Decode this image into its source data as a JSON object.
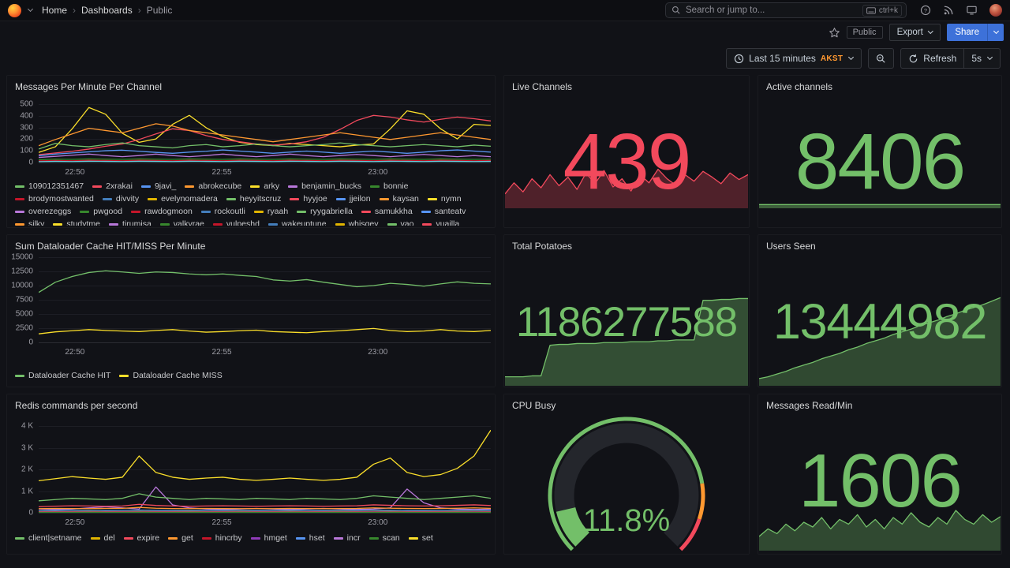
{
  "nav": {
    "breadcrumb": {
      "home": "Home",
      "dashboards": "Dashboards",
      "public": "Public"
    },
    "search_placeholder": "Search or jump to...",
    "shortcut": "ctrl+k",
    "icons": [
      "help-icon",
      "rss-icon",
      "monitor-icon",
      "user-avatar"
    ]
  },
  "toolbar": {
    "tag": "Public",
    "export_label": "Export",
    "share_label": "Share"
  },
  "controls": {
    "time_range": "Last 15 minutes",
    "timezone": "AKST",
    "refresh_label": "Refresh",
    "interval": "5s"
  },
  "panels": {
    "messages": {
      "title": "Messages Per Minute Per Channel"
    },
    "live_channels": {
      "title": "Live Channels",
      "value": "439",
      "color": "#F2495C"
    },
    "active_channels": {
      "title": "Active channels",
      "value": "8406",
      "color": "#73BF69"
    },
    "dataloader": {
      "title": "Sum Dataloader Cache HIT/MISS Per Minute"
    },
    "total_potatoes": {
      "title": "Total Potatoes",
      "value": "1186277588",
      "color": "#73BF69"
    },
    "users_seen": {
      "title": "Users Seen",
      "value": "13444982",
      "color": "#73BF69"
    },
    "redis": {
      "title": "Redis commands per second"
    },
    "cpu_busy": {
      "title": "CPU Busy",
      "value": "11.8%",
      "color": "#73BF69"
    },
    "messages_read": {
      "title": "Messages Read/Min",
      "value": "1606",
      "color": "#73BF69"
    }
  },
  "charts": {
    "messages": {
      "ymax": 520,
      "y_ticks": [
        "500",
        "400",
        "300",
        "200",
        "100",
        "0"
      ],
      "x_ticks": [
        {
          "label": "22:50",
          "pos": 0.08
        },
        {
          "label": "22:55",
          "pos": 0.405
        },
        {
          "label": "23:00",
          "pos": 0.75
        }
      ],
      "palette": [
        "#73BF69",
        "#F2495C",
        "#5794F2",
        "#FF9830",
        "#FADE2A",
        "#B877D9",
        "#37872D",
        "#C4162A",
        "#447EBC",
        "#E0B400"
      ],
      "legend": [
        "109012351467",
        "2xrakai",
        "9javi_",
        "abrokecube",
        "arky",
        "benjamin_bucks",
        "bonnie",
        "brodymostwanted",
        "divvity",
        "evelynomadera",
        "heyyitscruz",
        "hyyjoe",
        "jjeilon",
        "kaysan",
        "nymn",
        "overezeggs",
        "pwgood",
        "rawdogmoon",
        "rockoutli",
        "ryaah",
        "ryygabriella",
        "samukkha",
        "santeatv",
        "silky",
        "studytme",
        "tirumisa",
        "valkyrae",
        "vulpeshd",
        "wakeuptune",
        "whisqey",
        "vao",
        "vuailla"
      ],
      "series": [
        {
          "color": "#FADE2A",
          "values": [
            90,
            140,
            300,
            490,
            430,
            260,
            180,
            210,
            340,
            420,
            310,
            230,
            180,
            160,
            150,
            170,
            160,
            150,
            140,
            155,
            165,
            300,
            460,
            430,
            300,
            210,
            340,
            330
          ]
        },
        {
          "color": "#F2495C",
          "values": [
            70,
            85,
            100,
            120,
            145,
            165,
            205,
            255,
            300,
            285,
            240,
            205,
            185,
            165,
            155,
            165,
            185,
            225,
            295,
            375,
            420,
            405,
            380,
            360,
            385,
            405,
            390,
            370
          ]
        },
        {
          "color": "#73BF69",
          "values": [
            120,
            170,
            150,
            140,
            160,
            175,
            150,
            140,
            130,
            150,
            160,
            140,
            150,
            165,
            150,
            140,
            150,
            160,
            175,
            160,
            150,
            140,
            150,
            160,
            150,
            140,
            155,
            145
          ]
        },
        {
          "color": "#5794F2",
          "values": [
            60,
            75,
            85,
            95,
            105,
            110,
            100,
            90,
            82,
            92,
            100,
            112,
            102,
            92,
            82,
            92,
            102,
            92,
            82,
            92,
            102,
            92,
            82,
            92,
            105,
            112,
            102,
            92
          ]
        },
        {
          "color": "#B877D9",
          "values": [
            45,
            55,
            65,
            75,
            62,
            52,
            62,
            75,
            62,
            52,
            62,
            75,
            62,
            52,
            62,
            75,
            62,
            52,
            62,
            72,
            62,
            52,
            62,
            72,
            62,
            52,
            62,
            52
          ]
        },
        {
          "color": "#FF9830",
          "values": [
            150,
            205,
            255,
            305,
            285,
            265,
            305,
            345,
            325,
            285,
            265,
            245,
            225,
            205,
            185,
            205,
            225,
            245,
            265,
            245,
            225,
            205,
            225,
            245,
            265,
            245,
            225,
            205
          ]
        },
        {
          "color": "#37872D",
          "values": [
            25,
            30,
            28,
            32,
            30,
            28,
            32,
            30,
            28,
            32,
            30,
            28,
            32,
            30,
            28,
            32,
            30,
            28,
            32,
            30,
            28,
            32,
            30,
            28,
            32,
            30,
            28,
            30
          ]
        },
        {
          "color": "#C4162A",
          "values": [
            15,
            18,
            16,
            20,
            18,
            16,
            20,
            18,
            16,
            20,
            18,
            16,
            20,
            18,
            16,
            20,
            18,
            16,
            20,
            18,
            16,
            20,
            18,
            16,
            20,
            18,
            16,
            18
          ]
        },
        {
          "color": "#6ED0E0",
          "values": [
            8,
            10,
            9,
            11,
            10,
            9,
            11,
            10,
            9,
            11,
            10,
            9,
            11,
            10,
            9,
            11,
            10,
            9,
            11,
            10,
            9,
            11,
            10,
            9,
            11,
            10,
            9,
            10
          ]
        }
      ]
    },
    "dataloader": {
      "ymax": 15000,
      "y_ticks": [
        "15000",
        "12500",
        "10000",
        "7500",
        "5000",
        "2500",
        "0"
      ],
      "x_ticks": [
        {
          "label": "22:50",
          "pos": 0.08
        },
        {
          "label": "22:55",
          "pos": 0.405
        },
        {
          "label": "23:00",
          "pos": 0.75
        }
      ],
      "legend": [
        {
          "label": "Dataloader Cache HIT",
          "color": "#73BF69"
        },
        {
          "label": "Dataloader Cache MISS",
          "color": "#FADE2A"
        }
      ],
      "series": [
        {
          "color": "#73BF69",
          "values": [
            8800,
            10600,
            11600,
            12300,
            12600,
            12400,
            12150,
            12400,
            12300,
            12050,
            11900,
            12050,
            11800,
            11600,
            11000,
            10800,
            11050,
            10600,
            10200,
            9800,
            10000,
            10400,
            10200,
            9900,
            10300,
            10650,
            10400,
            10300
          ]
        },
        {
          "color": "#FADE2A",
          "values": [
            1500,
            1850,
            2050,
            2250,
            2100,
            2000,
            1900,
            2100,
            2250,
            2000,
            1800,
            1900,
            2050,
            2150,
            1900,
            1800,
            1700,
            1900,
            2050,
            2250,
            2450,
            2100,
            1900,
            2000,
            2250,
            2000,
            1900,
            2100
          ]
        }
      ]
    },
    "redis": {
      "ymax": 4200,
      "y_ticks": [
        "4 K",
        "3 K",
        "2 K",
        "1 K",
        "0"
      ],
      "x_ticks": [
        {
          "label": "22:50",
          "pos": 0.08
        },
        {
          "label": "22:55",
          "pos": 0.405
        },
        {
          "label": "23:00",
          "pos": 0.75
        }
      ],
      "legend": [
        {
          "label": "client|setname",
          "color": "#73BF69"
        },
        {
          "label": "del",
          "color": "#E0B400"
        },
        {
          "label": "expire",
          "color": "#F2495C"
        },
        {
          "label": "get",
          "color": "#FF9830"
        },
        {
          "label": "hincrby",
          "color": "#C4162A"
        },
        {
          "label": "hmget",
          "color": "#8F3BB8"
        },
        {
          "label": "hset",
          "color": "#5794F2"
        },
        {
          "label": "incr",
          "color": "#B877D9"
        },
        {
          "label": "scan",
          "color": "#37872D"
        },
        {
          "label": "set",
          "color": "#FADE2A"
        }
      ],
      "series": [
        {
          "color": "#FADE2A",
          "values": [
            1550,
            1650,
            1750,
            1680,
            1620,
            1720,
            2750,
            1950,
            1720,
            1620,
            1680,
            1720,
            1620,
            1570,
            1620,
            1680,
            1620,
            1570,
            1620,
            1720,
            2350,
            2650,
            1950,
            1750,
            1850,
            2150,
            2750,
            4000
          ]
        },
        {
          "color": "#B877D9",
          "values": [
            180,
            160,
            180,
            240,
            290,
            240,
            180,
            1250,
            380,
            240,
            180,
            160,
            180,
            210,
            180,
            160,
            180,
            210,
            180,
            160,
            180,
            240,
            1150,
            480,
            240,
            180,
            160,
            180
          ]
        },
        {
          "color": "#73BF69",
          "values": [
            580,
            640,
            700,
            670,
            640,
            700,
            920,
            760,
            700,
            640,
            700,
            670,
            640,
            700,
            670,
            640,
            700,
            670,
            640,
            700,
            820,
            760,
            700,
            640,
            700,
            760,
            820,
            700
          ]
        },
        {
          "color": "#F2495C",
          "values": [
            290,
            320,
            340,
            330,
            315,
            330,
            410,
            355,
            330,
            315,
            330,
            340,
            330,
            315,
            330,
            340,
            330,
            315,
            330,
            340,
            385,
            360,
            340,
            330,
            340,
            360,
            385,
            350
          ]
        },
        {
          "color": "#FF9830",
          "values": [
            200,
            210,
            205,
            200,
            210,
            215,
            260,
            220,
            205,
            200,
            210,
            205,
            200,
            205,
            200,
            210,
            205,
            200,
            205,
            210,
            240,
            220,
            210,
            205,
            210,
            220,
            240,
            215
          ]
        },
        {
          "color": "#5794F2",
          "values": [
            95,
            110,
            120,
            115,
            108,
            120,
            130,
            118,
            112,
            108,
            115,
            120,
            115,
            108,
            115,
            120,
            115,
            108,
            115,
            120,
            125,
            118,
            112,
            108,
            115,
            120,
            125,
            118
          ]
        },
        {
          "color": "#E0B400",
          "values": [
            55,
            58,
            56,
            60,
            58,
            56,
            60,
            58,
            56,
            60,
            58,
            56,
            60,
            58,
            56,
            60,
            58,
            56,
            60,
            58,
            62,
            60,
            58,
            56,
            58,
            60,
            62,
            58
          ]
        },
        {
          "color": "#C4162A",
          "values": [
            40,
            42,
            41,
            44,
            42,
            41,
            44,
            42,
            41,
            44,
            42,
            41,
            44,
            42,
            41,
            44,
            42,
            41,
            44,
            42,
            46,
            44,
            42,
            41,
            42,
            44,
            46,
            42
          ]
        },
        {
          "color": "#8F3BB8",
          "values": [
            28,
            30,
            29,
            31,
            30,
            29,
            31,
            30,
            29,
            31,
            30,
            29,
            31,
            30,
            29,
            31,
            30,
            29,
            31,
            30,
            32,
            31,
            30,
            29,
            30,
            31,
            32,
            30
          ]
        },
        {
          "color": "#37872D",
          "values": [
            15,
            16,
            15,
            17,
            16,
            15,
            17,
            16,
            15,
            17,
            16,
            15,
            17,
            16,
            15,
            17,
            16,
            15,
            17,
            16,
            18,
            17,
            16,
            15,
            16,
            17,
            18,
            16
          ]
        }
      ]
    },
    "live_spark": {
      "ymax": 100,
      "series": [
        {
          "color": "#F2495C",
          "fill": true,
          "fill_opacity": 0.28,
          "values": [
            35,
            62,
            40,
            72,
            50,
            82,
            55,
            76,
            46,
            86,
            60,
            92,
            52,
            72,
            42,
            82,
            62,
            95,
            72,
            56,
            82,
            66,
            90,
            76,
            60,
            86,
            70,
            82
          ]
        }
      ]
    },
    "active_spark": {
      "ymax": 100,
      "series": [
        {
          "color": "#73BF69",
          "fill": true,
          "fill_opacity": 0.45,
          "values": [
            9,
            9,
            9,
            9,
            9,
            9,
            9,
            9,
            9,
            9,
            9,
            9,
            9,
            9,
            9,
            9,
            9,
            9,
            9,
            9,
            9,
            9,
            9,
            9,
            9,
            9,
            9,
            9
          ]
        }
      ]
    },
    "potatoes_spark": {
      "ymax": 100,
      "series": [
        {
          "color": "#73BF69",
          "fill": true,
          "fill_opacity": 0.35,
          "values": [
            10,
            10,
            10,
            11,
            11,
            45,
            46,
            46,
            47,
            47,
            47,
            48,
            48,
            48,
            49,
            49,
            49,
            50,
            50,
            51,
            51,
            51,
            95,
            95,
            96,
            96,
            97,
            97
          ]
        }
      ]
    },
    "users_spark": {
      "ymax": 100,
      "series": [
        {
          "color": "#73BF69",
          "fill": true,
          "fill_opacity": 0.32,
          "values": [
            8,
            10,
            13,
            16,
            20,
            23,
            26,
            30,
            33,
            36,
            40,
            43,
            47,
            50,
            53,
            57,
            60,
            63,
            67,
            70,
            73,
            77,
            80,
            84,
            87,
            90,
            94,
            98
          ]
        }
      ]
    },
    "read_spark": {
      "ymax": 100,
      "series": [
        {
          "color": "#73BF69",
          "fill": true,
          "fill_opacity": 0.32,
          "values": [
            30,
            46,
            36,
            56,
            42,
            60,
            50,
            70,
            46,
            66,
            56,
            76,
            50,
            66,
            46,
            70,
            56,
            80,
            60,
            50,
            70,
            56,
            85,
            66,
            56,
            76,
            60,
            72
          ]
        }
      ]
    },
    "cpu_gauge": {
      "percent": 11.8,
      "color": "#73BF69",
      "track": "#24262c",
      "thresholds": [
        {
          "to": 80,
          "color": "#73BF69"
        },
        {
          "to": 90,
          "color": "#FF9830"
        },
        {
          "to": 100,
          "color": "#F2495C"
        }
      ]
    }
  }
}
